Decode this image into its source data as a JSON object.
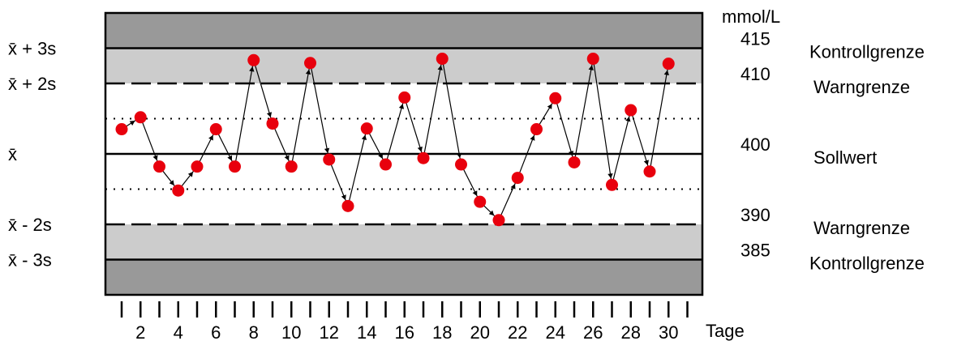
{
  "chart_data": {
    "type": "line",
    "chart_kind": "Levey-Jennings control chart",
    "unit": "mmol/L",
    "xlabel": "Tage",
    "x": [
      1,
      2,
      3,
      4,
      5,
      6,
      7,
      8,
      9,
      10,
      11,
      12,
      13,
      14,
      15,
      16,
      17,
      18,
      19,
      20,
      21,
      22,
      23,
      24,
      25,
      26,
      27,
      28,
      29,
      30
    ],
    "x_tick_labels": [
      "2",
      "4",
      "6",
      "8",
      "10",
      "12",
      "14",
      "16",
      "18",
      "20",
      "22",
      "24",
      "26",
      "28",
      "30"
    ],
    "ylim": [
      380,
      420
    ],
    "series": [
      {
        "values": [
          403.5,
          405.2,
          398.2,
          394.8,
          398.2,
          403.5,
          398.2,
          413.3,
          404.3,
          398.2,
          412.9,
          399.2,
          392.6,
          403.6,
          398.5,
          408.0,
          399.4,
          413.5,
          398.5,
          393.2,
          390.6,
          396.6,
          403.5,
          407.9,
          398.8,
          413.5,
          395.6,
          406.2,
          397.5,
          412.8
        ],
        "marker_color": "#e8000d",
        "line_color": "#000000"
      }
    ],
    "reference_lines": [
      {
        "left_label": "x̄ + 3s",
        "value": 415,
        "right_label": "Kontrollgrenze",
        "style": "solid"
      },
      {
        "left_label": "x̄ + 2s",
        "value": 410,
        "right_label": "Warngrenze",
        "style": "dashed"
      },
      {
        "value": 405,
        "style": "dotted"
      },
      {
        "left_label": "x̄",
        "value": 400,
        "right_label": "Sollwert",
        "style": "solid"
      },
      {
        "value": 395,
        "style": "dotted"
      },
      {
        "left_label": "x̄ - 2s",
        "value": 390,
        "right_label": "Warngrenze",
        "style": "dashed"
      },
      {
        "left_label": "x̄ - 3s",
        "value": 385,
        "right_label": "Kontrollgrenze",
        "style": "solid"
      }
    ],
    "bands": [
      {
        "from": 415,
        "to": 420,
        "color": "#999999"
      },
      {
        "from": 410,
        "to": 415,
        "color": "#cccccc"
      },
      {
        "from": 385,
        "to": 390,
        "color": "#cccccc"
      },
      {
        "from": 380,
        "to": 385,
        "color": "#999999"
      }
    ],
    "grid": false,
    "legend": "none"
  }
}
